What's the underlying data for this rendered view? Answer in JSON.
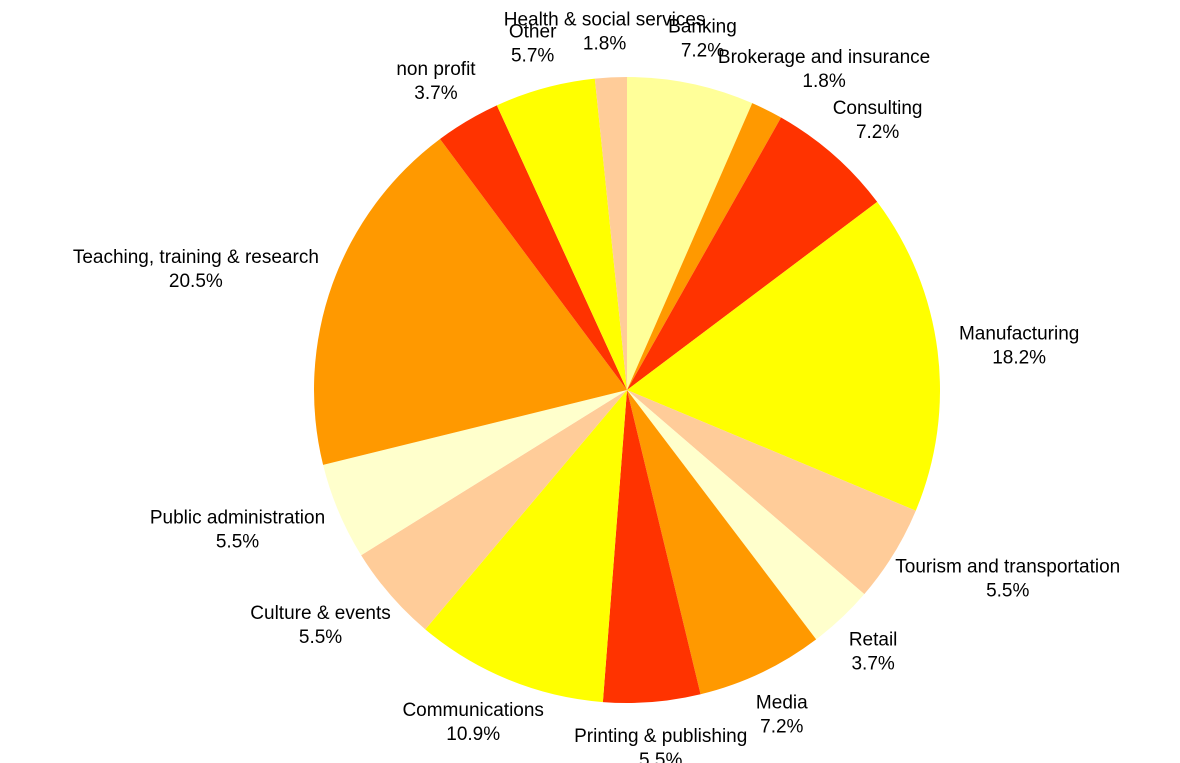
{
  "chart_data": {
    "type": "pie",
    "categories": [
      "Banking",
      "Brokerage and insurance",
      "Consulting",
      "Manufacturing",
      "Tourism and transportation",
      "Retail",
      "Media",
      "Printing & publishing",
      "Communications",
      "Culture & events",
      "Public administration",
      "Teaching, training & research",
      "non profit",
      "Other",
      "Health & social services"
    ],
    "values": [
      7.2,
      1.8,
      7.2,
      18.2,
      5.5,
      3.7,
      7.2,
      5.5,
      10.9,
      5.5,
      5.5,
      20.5,
      3.7,
      5.7,
      1.8
    ],
    "value_labels": [
      "7.2%",
      "1.8%",
      "7.2%",
      "18.2%",
      "5.5%",
      "3.7%",
      "7.2%",
      "5.5%",
      "10.9%",
      "5.5%",
      "5.5%",
      "20.5%",
      "3.7%",
      "5.7%",
      "1.8%"
    ],
    "colors": [
      "#ffff99",
      "#ff9900",
      "#ff3300",
      "#ffff00",
      "#ffcc99",
      "#ffffcc",
      "#ff9900",
      "#ff3300",
      "#ffff00",
      "#ffcc99",
      "#ffffcc",
      "#ff9900",
      "#ff3300",
      "#ffff00",
      "#ffcc99"
    ]
  }
}
